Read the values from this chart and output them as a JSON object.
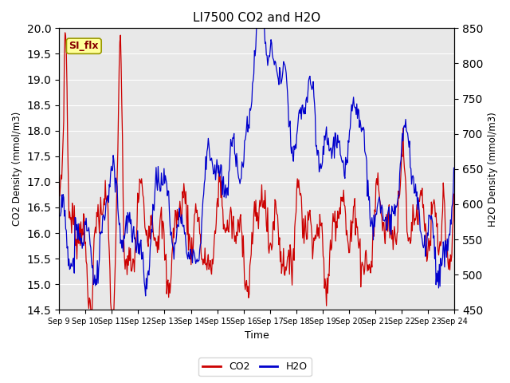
{
  "title": "LI7500 CO2 and H2O",
  "xlabel": "Time",
  "ylabel_left": "CO2 Density (mmol/m3)",
  "ylabel_right": "H2O Density (mmol/m3)",
  "ylim_left": [
    14.5,
    20.0
  ],
  "ylim_right": [
    450,
    850
  ],
  "co2_color": "#cc0000",
  "h2o_color": "#0000cc",
  "plot_bg_color": "#e8e8e8",
  "annotation_text": "SI_flx",
  "annotation_facecolor": "#ffff99",
  "annotation_edgecolor": "#999900",
  "legend_co2": "CO2",
  "legend_h2o": "H2O",
  "n_points": 600,
  "rand_seed": 7
}
